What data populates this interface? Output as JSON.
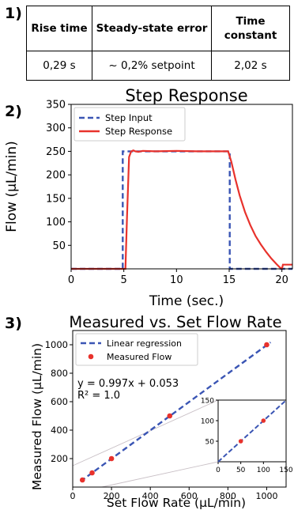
{
  "panel1": {
    "label": "1)",
    "headers": [
      "Rise time",
      "Steady-state error",
      "Time constant"
    ],
    "values": [
      "0,29 s",
      "~ 0,2% setpoint",
      "2,02 s"
    ]
  },
  "panel2": {
    "label": "2)"
  },
  "panel3": {
    "label": "3)"
  },
  "chart_data": [
    {
      "type": "line",
      "title": "Step Response",
      "xlabel": "Time (sec.)",
      "ylabel": "Flow (µL/min)",
      "xlim": [
        0,
        21
      ],
      "ylim": [
        0,
        350
      ],
      "xticks": [
        0,
        5,
        10,
        15,
        20
      ],
      "yticks": [
        50,
        100,
        150,
        200,
        250,
        300,
        350
      ],
      "legend_position": "top-left",
      "grid": false,
      "series": [
        {
          "name": "Step Input",
          "style": "dashed",
          "color": "#3a55b4",
          "x": [
            0,
            4.9,
            4.9,
            15.05,
            15.05,
            21
          ],
          "y": [
            0,
            0,
            250,
            250,
            0,
            0
          ]
        },
        {
          "name": "Step Response",
          "style": "solid",
          "color": "#e8322c",
          "x": [
            0,
            5.15,
            5.3,
            5.5,
            5.7,
            5.9,
            6.1,
            6.4,
            6.8,
            8,
            10,
            12,
            14,
            14.9,
            15.2,
            15.6,
            16,
            16.5,
            17,
            17.5,
            18,
            18.5,
            19,
            19.5,
            19.8,
            20,
            20.1,
            21
          ],
          "y": [
            0,
            0,
            110,
            238,
            250,
            252,
            250,
            249,
            251,
            250,
            251,
            250,
            250,
            250,
            228,
            190,
            156,
            121,
            93,
            70,
            52,
            36,
            22,
            10,
            3,
            0,
            9,
            9
          ]
        }
      ]
    },
    {
      "type": "scatter",
      "title": "Measured vs. Set Flow Rate",
      "xlabel": "Set Flow Rate (µL/min)",
      "ylabel": "Measured Flow (µL/min)",
      "xlim": [
        0,
        1100
      ],
      "ylim": [
        0,
        1100
      ],
      "xticks": [
        0,
        200,
        400,
        600,
        800,
        1000
      ],
      "yticks": [
        200,
        400,
        600,
        800,
        1000
      ],
      "legend_position": "top-left",
      "annotation": [
        "y = 0.997x + 0.053",
        "R² = 1.0"
      ],
      "series": [
        {
          "name": "Linear regression",
          "style": "dashed",
          "color": "#3a55b4",
          "slope": 0.997,
          "intercept": 0.053
        },
        {
          "name": "Measured Flow",
          "style": "points",
          "color": "#e8322c",
          "x": [
            50,
            100,
            200,
            500,
            1000
          ],
          "y": [
            50,
            100,
            200,
            500,
            1000
          ]
        }
      ],
      "inset": {
        "xlim": [
          0,
          150
        ],
        "ylim": [
          0,
          150
        ],
        "xticks": [
          0,
          50,
          100,
          150
        ],
        "yticks": [
          50,
          100,
          150
        ],
        "points_x": [
          50,
          100
        ],
        "points_y": [
          50,
          100
        ]
      }
    }
  ]
}
